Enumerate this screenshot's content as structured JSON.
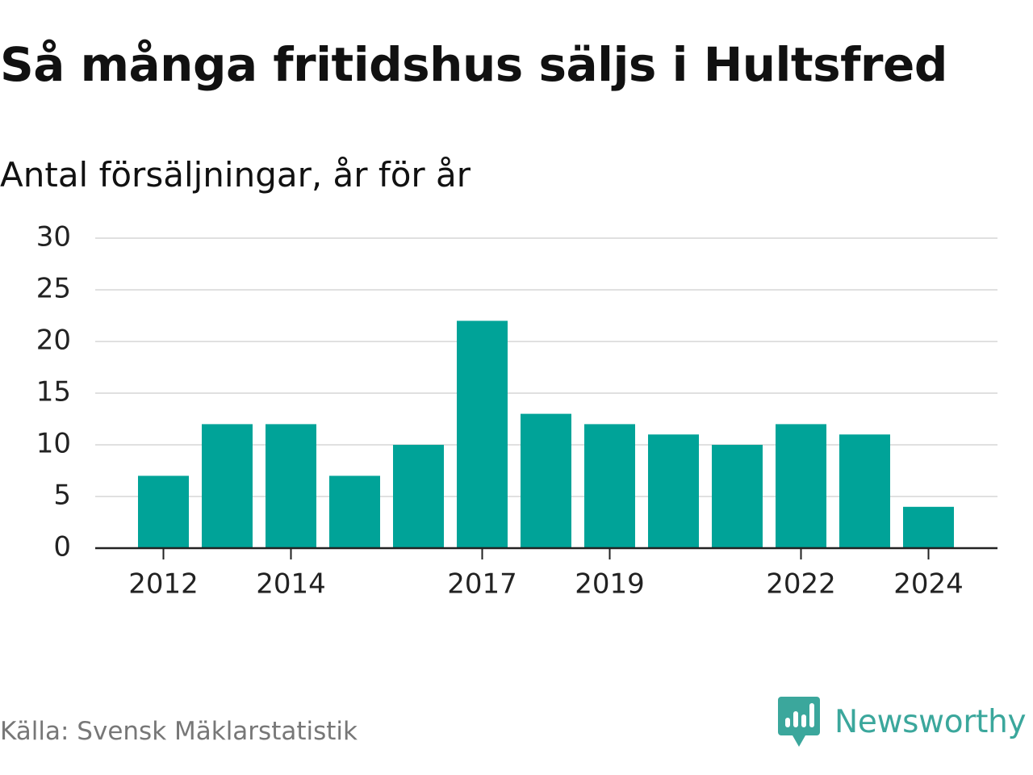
{
  "chart_data": {
    "type": "bar",
    "title": "Så många fritidshus säljs i Hultsfred",
    "subtitle": "Antal försäljningar, år för år",
    "x": [
      2012,
      2013,
      2014,
      2015,
      2016,
      2017,
      2018,
      2019,
      2020,
      2021,
      2022,
      2023,
      2024
    ],
    "values": [
      7,
      12,
      12,
      7,
      10,
      22,
      13,
      12,
      11,
      10,
      12,
      11,
      4
    ],
    "x_tick_labels": [
      "2012",
      "2014",
      "2017",
      "2019",
      "2022",
      "2024"
    ],
    "y_ticks": [
      0,
      5,
      10,
      15,
      20,
      25,
      30
    ],
    "ylim": [
      0,
      30
    ],
    "grid": true,
    "bar_color": "#00a398",
    "gridline_color": "#e0e0e0",
    "xlabel": "",
    "ylabel": ""
  },
  "footer": {
    "source": "Källa: Svensk Mäklarstatistik",
    "brand_name": "Newsworthy",
    "brand_color": "#3ba79c",
    "brand_icon": "newsworthy-logo-icon"
  }
}
